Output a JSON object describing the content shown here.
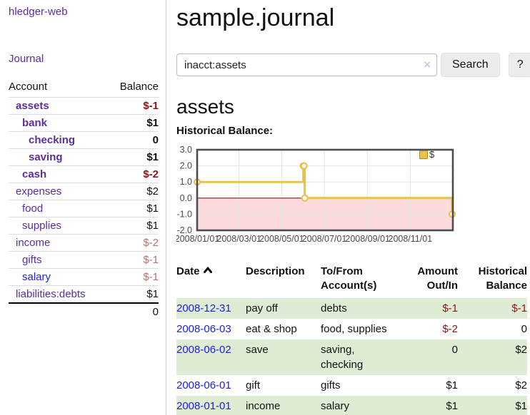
{
  "app": {
    "title": "hledger-web"
  },
  "sidebar": {
    "journal_link": "Journal",
    "headers": {
      "account": "Account",
      "balance": "Balance"
    },
    "accounts": [
      {
        "name": "assets",
        "balance": "$-1"
      },
      {
        "name": "bank",
        "balance": "$1"
      },
      {
        "name": "checking",
        "balance": "0"
      },
      {
        "name": "saving",
        "balance": "$1"
      },
      {
        "name": "cash",
        "balance": "$-2"
      },
      {
        "name": "expenses",
        "balance": "$2"
      },
      {
        "name": "food",
        "balance": "$1"
      },
      {
        "name": "supplies",
        "balance": "$1"
      },
      {
        "name": "income",
        "balance": "$-2"
      },
      {
        "name": "gifts",
        "balance": "$-1"
      },
      {
        "name": "salary",
        "balance": "$-1"
      },
      {
        "name": "liabilities:debts",
        "balance": "$1"
      }
    ],
    "total": "0"
  },
  "main": {
    "title": "sample.journal",
    "search": {
      "value": "inacct:assets",
      "clear_icon": "×",
      "search_button": "Search",
      "help_button": "?"
    },
    "account_heading": "assets",
    "chart_title": "Historical Balance:"
  },
  "chart_data": {
    "type": "line",
    "title": "Historical Balance",
    "step": true,
    "legend_position": "top-right",
    "series": [
      {
        "name": "$",
        "color": "#e9c14d",
        "points": [
          {
            "date": "2008-01-01",
            "day": 0,
            "value": 1
          },
          {
            "date": "2008-06-01",
            "day": 152,
            "value": 2
          },
          {
            "date": "2008-06-02",
            "day": 153,
            "value": 2
          },
          {
            "date": "2008-06-03",
            "day": 154,
            "value": 0
          },
          {
            "date": "2008-12-31",
            "day": 365,
            "value": -1
          }
        ]
      }
    ],
    "ylim": [
      -2,
      3
    ],
    "xlim_days": [
      0,
      366
    ],
    "y_ticks": [
      {
        "label": "3.0",
        "value": 3
      },
      {
        "label": "2.0",
        "value": 2
      },
      {
        "label": "1.0",
        "value": 1
      },
      {
        "label": "0.0",
        "value": 0
      },
      {
        "label": "-1.0",
        "value": -1
      },
      {
        "label": "-2.0",
        "value": -2
      }
    ],
    "x_ticks": [
      {
        "label": "2008/01/01",
        "day": 0
      },
      {
        "label": "2008/03/01",
        "day": 60
      },
      {
        "label": "2008/05/01",
        "day": 121
      },
      {
        "label": "2008/07/01",
        "day": 182
      },
      {
        "label": "2008/09/01",
        "day": 244
      },
      {
        "label": "2008/11/01",
        "day": 305
      }
    ],
    "grid": true,
    "negative_region_color": "#fbdbdb",
    "zero_line_color": "#8b1a1a",
    "grid_color": "#e4e4e4",
    "border_color": "#4d4d4d"
  },
  "register": {
    "headers": {
      "date": "Date",
      "description": "Description",
      "accounts": "To/From Account(s)",
      "amount": "Amount Out/In",
      "balance": "Historical Balance"
    },
    "rows": [
      {
        "date": "2008-12-31",
        "description": "pay off",
        "accounts": "debts",
        "amount": "$-1",
        "balance": "$-1"
      },
      {
        "date": "2008-06-03",
        "description": "eat & shop",
        "accounts": "food, supplies",
        "amount": "$-2",
        "balance": "0"
      },
      {
        "date": "2008-06-02",
        "description": "save",
        "accounts": "saving, checking",
        "amount": "0",
        "balance": "$2"
      },
      {
        "date": "2008-06-01",
        "description": "gift",
        "accounts": "gifts",
        "amount": "$1",
        "balance": "$2"
      },
      {
        "date": "2008-01-01",
        "description": "income",
        "accounts": "salary",
        "amount": "$1",
        "balance": "$1"
      }
    ]
  }
}
